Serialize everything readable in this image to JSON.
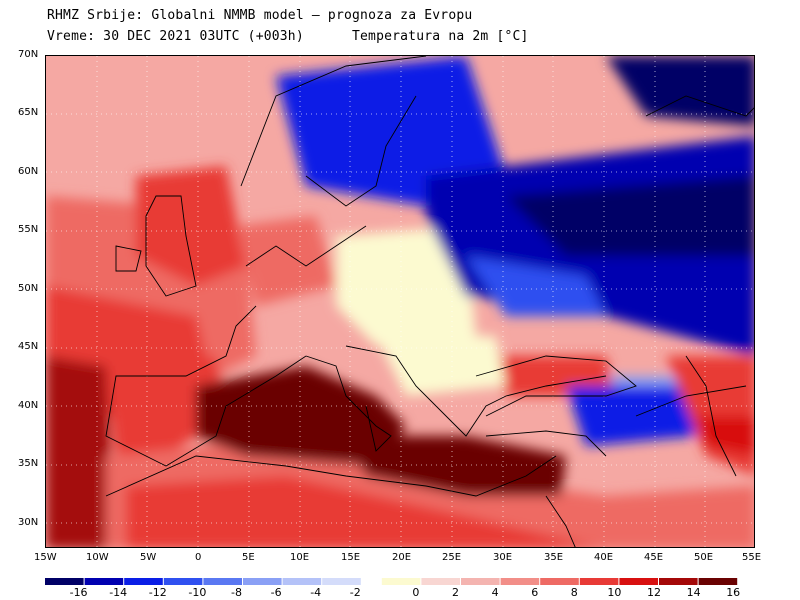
{
  "header": {
    "line1": "RHMZ Srbije: Globalni NMMB model — prognoza za Evropu",
    "line2": "Vreme: 30 DEC 2021 03UTC (+003h)",
    "line3": "Temperatura na 2m [°C]"
  },
  "map": {
    "lat_labels": [
      "70N",
      "65N",
      "60N",
      "55N",
      "50N",
      "45N",
      "40N",
      "35N",
      "30N"
    ],
    "lon_labels": [
      "15W",
      "10W",
      "5W",
      "0",
      "5E",
      "10E",
      "15E",
      "20E",
      "25E",
      "30E",
      "35E",
      "40E",
      "45E",
      "50E",
      "55E"
    ]
  },
  "colorbar": {
    "labels": [
      "-16",
      "-14",
      "-12",
      "-10",
      "-8",
      "-6",
      "-4",
      "-2",
      "0",
      "2",
      "4",
      "6",
      "8",
      "10",
      "12",
      "14",
      "16"
    ],
    "colors": [
      "#000066",
      "#0000b0",
      "#0a1ee6",
      "#2f50f0",
      "#5a78f2",
      "#8aa0f5",
      "#b4c2f8",
      "#d4dcfa",
      "#fcfad0",
      "#f8d6d2",
      "#f4b4b0",
      "#f28e88",
      "#ee6a64",
      "#e83a36",
      "#d81010",
      "#a40808",
      "#6a0202"
    ]
  }
}
